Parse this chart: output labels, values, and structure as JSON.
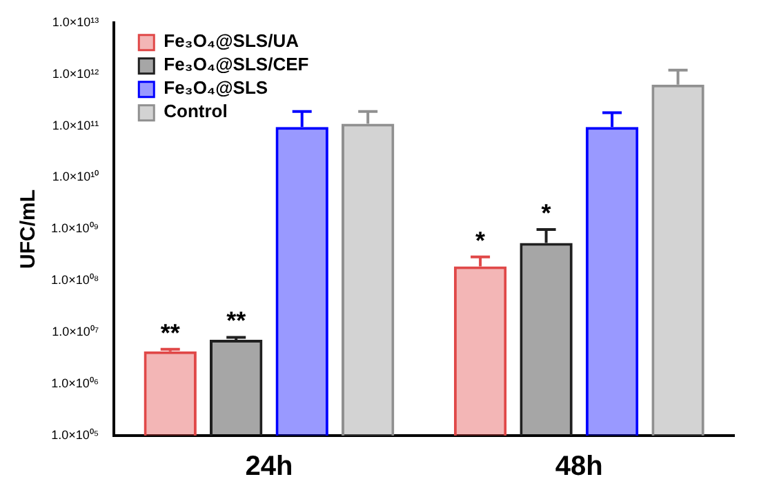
{
  "chart_data": {
    "type": "bar",
    "ylabel": "UFC/mL",
    "categories": [
      "24h",
      "48h"
    ],
    "log": "y",
    "ylim": [
      100000,
      10000000000000
    ],
    "yticks": [
      {
        "value": 100000,
        "label": "1.0×10⁰⁵"
      },
      {
        "value": 1000000,
        "label": "1.0×10⁰⁶"
      },
      {
        "value": 10000000,
        "label": "1.0×10⁰⁷"
      },
      {
        "value": 100000000,
        "label": "1.0×10⁰⁸"
      },
      {
        "value": 1000000000,
        "label": "1.0×10⁰⁹"
      },
      {
        "value": 10000000000,
        "label": "1.0×10¹⁰"
      },
      {
        "value": 100000000000,
        "label": "1.0×10¹¹"
      },
      {
        "value": 1000000000000,
        "label": "1.0×10¹²"
      },
      {
        "value": 10000000000000,
        "label": "1.0×10¹³"
      }
    ],
    "legend": "top left",
    "grid": false,
    "series": [
      {
        "name": "Fe₃O₄@SLS/UA",
        "color": "#e04848",
        "values": [
          4300000,
          190000000
        ],
        "errors": [
          [
            4300000,
            4700000
          ],
          [
            190000000,
            290000000
          ]
        ],
        "value_labels": [
          "**",
          "*"
        ]
      },
      {
        "name": "Fe₃O₄@SLS/CEF",
        "color": "#202020",
        "values": [
          7200000,
          540000000
        ],
        "errors": [
          [
            7200000,
            8000000
          ],
          [
            540000000,
            980000000
          ]
        ],
        "value_labels": [
          "**",
          "*"
        ]
      },
      {
        "name": "Fe₃O₄@SLS",
        "color": "#0000ff",
        "values": [
          95000000000,
          95000000000
        ],
        "errors": [
          [
            95000000000,
            190000000000
          ],
          [
            95000000000,
            180000000000
          ]
        ]
      },
      {
        "name": "Control",
        "color": "#909090",
        "values": [
          110000000000,
          630000000000
        ],
        "errors": [
          [
            110000000000,
            190000000000
          ],
          [
            630000000000,
            1200000000000
          ]
        ]
      }
    ]
  }
}
